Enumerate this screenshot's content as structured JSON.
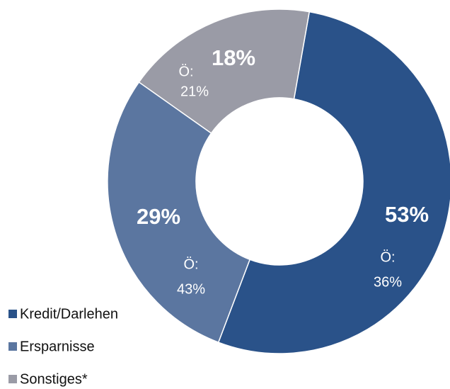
{
  "chart_data": {
    "type": "donut",
    "categories": [
      "Kredit/Darlehen",
      "Ersparnisse",
      "Sonstiges*"
    ],
    "values": [
      53,
      29,
      18
    ],
    "value_labels": [
      "53%",
      "29%",
      "18%"
    ],
    "colors": [
      "#2a5289",
      "#5b76a0",
      "#9a9ba6"
    ],
    "comparison_prefix": "Ö:",
    "comparison_values": [
      36,
      43,
      21
    ],
    "comparison_labels": [
      "36%",
      "43%",
      "21%"
    ],
    "legend": "bottom-left"
  }
}
